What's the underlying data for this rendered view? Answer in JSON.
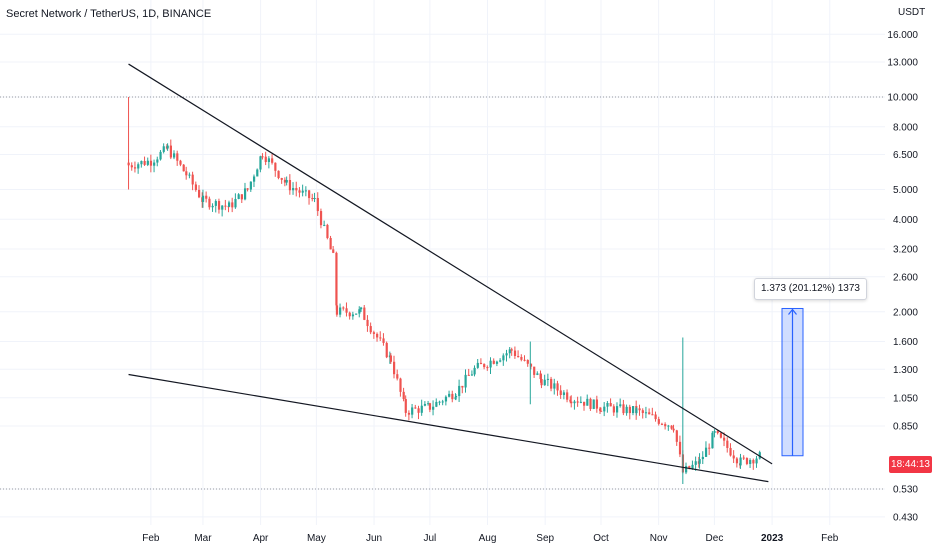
{
  "header": {
    "symbol_title": "Secret Network / TetherUS, 1D, BINANCE",
    "currency": "USDT"
  },
  "last_price": {
    "countdown": "18:44:13",
    "color": "#f23645"
  },
  "measurement": {
    "label": "1.373 (201.12%) 1373",
    "from_price": 0.68,
    "to_price": 2.05,
    "color": "#2962ff"
  },
  "colors": {
    "up": "#26a69a",
    "down": "#ef5350",
    "grid": "#f0f3fa",
    "trendline": "#131722"
  },
  "chart_data": {
    "type": "candlestick",
    "y_scale": "log",
    "ylim": [
      0.4,
      18
    ],
    "y_ticks": [
      "16.000",
      "13.000",
      "10.000",
      "8.000",
      "6.500",
      "5.000",
      "4.000",
      "3.200",
      "2.600",
      "2.000",
      "1.600",
      "1.300",
      "1.050",
      "0.850",
      "0.530",
      "0.430"
    ],
    "x_ticks": [
      "Feb",
      "Mar",
      "Apr",
      "May",
      "Jun",
      "Jul",
      "Aug",
      "Sep",
      "Oct",
      "Nov",
      "Dec",
      "2023",
      "Feb"
    ],
    "series": [
      {
        "values": [
          {
            "date": "2022-01-20",
            "close": 6.0
          },
          {
            "date": "2022-02-01",
            "close": 6.2
          },
          {
            "date": "2022-02-10",
            "close": 6.8
          },
          {
            "date": "2022-02-20",
            "close": 5.6
          },
          {
            "date": "2022-03-01",
            "close": 4.6
          },
          {
            "date": "2022-03-15",
            "close": 4.4
          },
          {
            "date": "2022-03-25",
            "close": 5.0
          },
          {
            "date": "2022-04-02",
            "close": 6.6
          },
          {
            "date": "2022-04-15",
            "close": 5.2
          },
          {
            "date": "2022-04-30",
            "close": 4.6
          },
          {
            "date": "2022-05-10",
            "close": 3.0
          },
          {
            "date": "2022-05-12",
            "close": 2.0
          },
          {
            "date": "2022-05-25",
            "close": 2.0
          },
          {
            "date": "2022-06-10",
            "close": 1.4
          },
          {
            "date": "2022-06-18",
            "close": 0.95
          },
          {
            "date": "2022-07-01",
            "close": 0.98
          },
          {
            "date": "2022-07-15",
            "close": 1.1
          },
          {
            "date": "2022-07-25",
            "close": 1.3
          },
          {
            "date": "2022-08-14",
            "close": 1.5
          },
          {
            "date": "2022-08-30",
            "close": 1.2
          },
          {
            "date": "2022-09-15",
            "close": 1.05
          },
          {
            "date": "2022-10-01",
            "close": 0.98
          },
          {
            "date": "2022-10-20",
            "close": 0.95
          },
          {
            "date": "2022-11-09",
            "close": 0.85
          },
          {
            "date": "2022-11-14",
            "close": 0.6
          },
          {
            "date": "2022-11-23",
            "close": 0.65
          },
          {
            "date": "2022-12-01",
            "close": 0.8
          },
          {
            "date": "2022-12-15",
            "close": 0.65
          },
          {
            "date": "2022-12-26",
            "close": 0.68
          }
        ]
      }
    ],
    "trendlines": [
      {
        "from": {
          "date": "2022-01-20",
          "price": 12.8
        },
        "to": {
          "date": "2023-01-01",
          "price": 0.64
        }
      },
      {
        "from": {
          "date": "2022-01-20",
          "price": 1.25
        },
        "to": {
          "date": "2022-12-30",
          "price": 0.56
        }
      }
    ],
    "horizontal_lines": [
      10.0,
      0.53
    ],
    "grid": true
  }
}
